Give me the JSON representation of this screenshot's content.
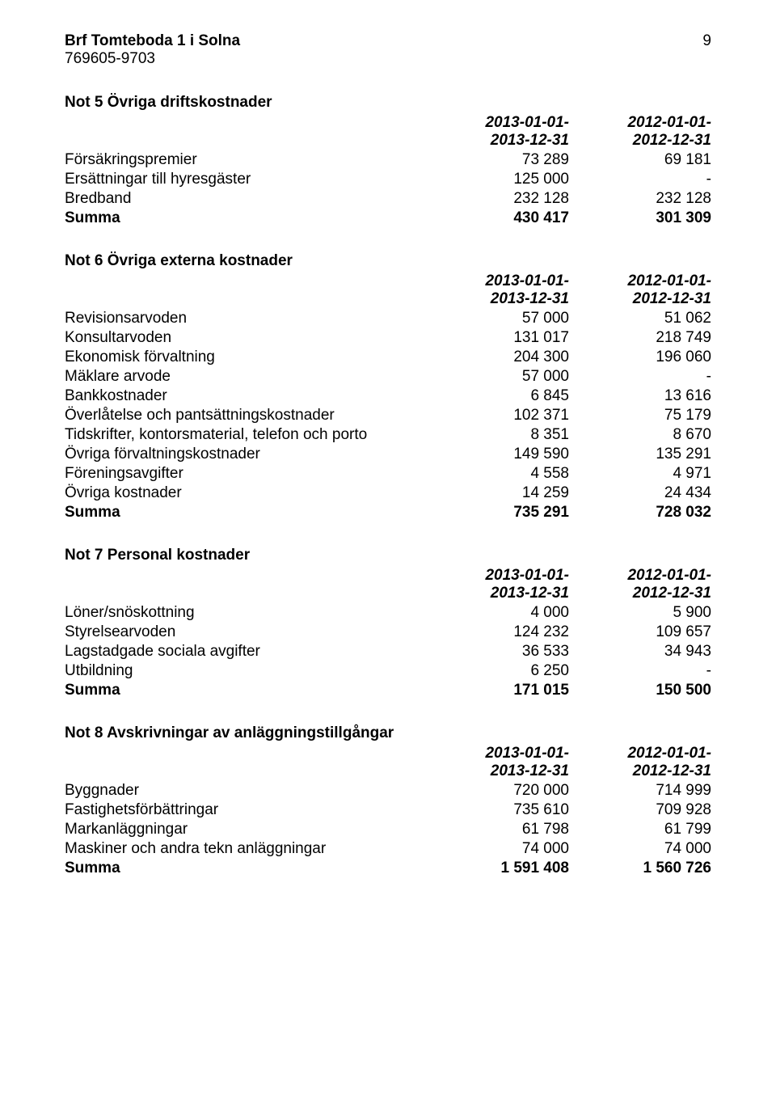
{
  "header": {
    "company_name": "Brf Tomteboda 1 i Solna",
    "org_number": "769605-9703",
    "page_number": "9"
  },
  "periods": {
    "col1_line1": "2013-01-01-",
    "col1_line2": "2013-12-31",
    "col2_line1": "2012-01-01-",
    "col2_line2": "2012-12-31"
  },
  "note5": {
    "title": "Not 5 Övriga driftskostnader",
    "rows": [
      {
        "label": "Försäkringspremier",
        "c1": "73 289",
        "c2": "69 181"
      },
      {
        "label": "Ersättningar till hyresgäster",
        "c1": "125 000",
        "c2": "-"
      },
      {
        "label": "Bredband",
        "c1": "232 128",
        "c2": "232 128"
      }
    ],
    "sum_label": "Summa",
    "sum_c1": "430 417",
    "sum_c2": "301 309"
  },
  "note6": {
    "title": "Not 6 Övriga externa kostnader",
    "rows": [
      {
        "label": "Revisionsarvoden",
        "c1": "57 000",
        "c2": "51 062"
      },
      {
        "label": "Konsultarvoden",
        "c1": "131 017",
        "c2": "218 749"
      },
      {
        "label": "Ekonomisk förvaltning",
        "c1": "204 300",
        "c2": "196 060"
      },
      {
        "label": "Mäklare arvode",
        "c1": "57 000",
        "c2": "-"
      },
      {
        "label": "Bankkostnader",
        "c1": "6 845",
        "c2": "13 616"
      },
      {
        "label": "Överlåtelse och pantsättningskostnader",
        "c1": "102 371",
        "c2": "75 179"
      },
      {
        "label": "Tidskrifter, kontorsmaterial, telefon och porto",
        "c1": "8 351",
        "c2": "8 670"
      },
      {
        "label": "Övriga förvaltningskostnader",
        "c1": "149 590",
        "c2": "135 291"
      },
      {
        "label": "Föreningsavgifter",
        "c1": "4 558",
        "c2": "4 971"
      },
      {
        "label": "Övriga kostnader",
        "c1": "14 259",
        "c2": "24 434"
      }
    ],
    "sum_label": "Summa",
    "sum_c1": "735 291",
    "sum_c2": "728 032"
  },
  "note7": {
    "title": "Not 7 Personal kostnader",
    "rows": [
      {
        "label": "Löner/snöskottning",
        "c1": "4 000",
        "c2": "5 900"
      },
      {
        "label": "Styrelsearvoden",
        "c1": "124 232",
        "c2": "109 657"
      },
      {
        "label": "Lagstadgade sociala avgifter",
        "c1": "36 533",
        "c2": "34 943"
      },
      {
        "label": "Utbildning",
        "c1": "6 250",
        "c2": "-"
      }
    ],
    "sum_label": "Summa",
    "sum_c1": "171 015",
    "sum_c2": "150 500"
  },
  "note8": {
    "title": "Not 8 Avskrivningar av anläggningstillgångar",
    "rows": [
      {
        "label": "Byggnader",
        "c1": "720 000",
        "c2": "714 999"
      },
      {
        "label": "Fastighetsförbättringar",
        "c1": "735 610",
        "c2": "709 928"
      },
      {
        "label": "Markanläggningar",
        "c1": "61 798",
        "c2": "61 799"
      },
      {
        "label": "Maskiner och andra tekn anläggningar",
        "c1": "74 000",
        "c2": "74 000"
      }
    ],
    "sum_label": "Summa",
    "sum_c1": "1 591 408",
    "sum_c2": "1 560 726"
  }
}
